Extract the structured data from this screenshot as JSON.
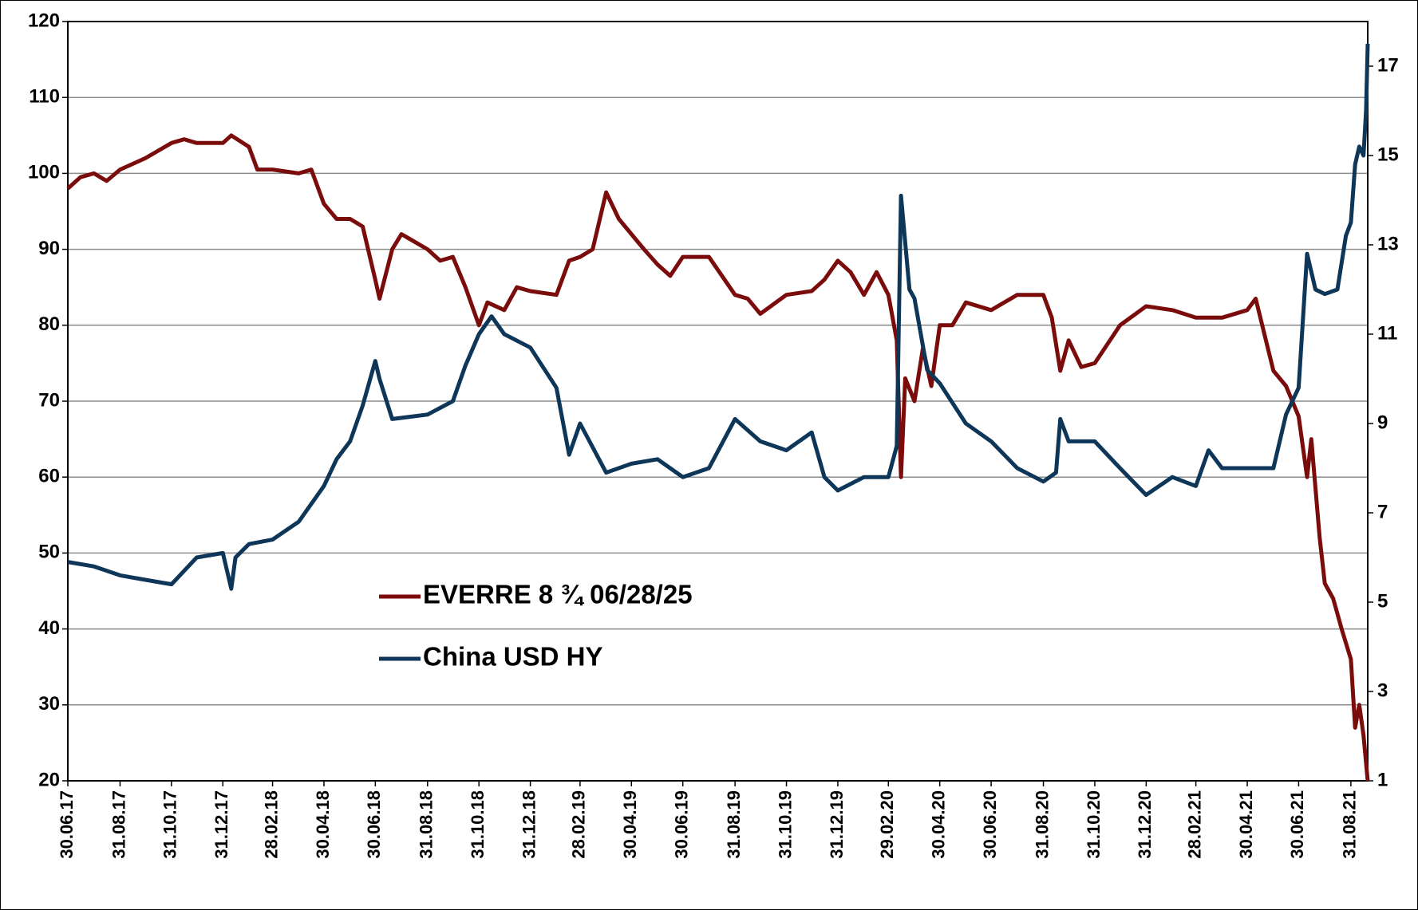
{
  "chart_data": {
    "type": "line",
    "xlim": [
      "30.06.17",
      "20.09.21"
    ],
    "xticks": [
      "30.06.17",
      "31.08.17",
      "31.10.17",
      "31.12.17",
      "28.02.18",
      "30.04.18",
      "30.06.18",
      "31.08.18",
      "31.10.18",
      "31.12.18",
      "28.02.19",
      "30.04.19",
      "30.06.19",
      "31.08.19",
      "31.10.19",
      "31.12.19",
      "29.02.20",
      "30.04.20",
      "30.06.20",
      "31.08.20",
      "31.10.20",
      "31.12.20",
      "28.02.21",
      "30.04.21",
      "30.06.21",
      "31.08.21"
    ],
    "ylim": [
      20,
      120
    ],
    "yticks": [
      20,
      30,
      40,
      50,
      60,
      70,
      80,
      90,
      100,
      110,
      120
    ],
    "y2lim": [
      1,
      18
    ],
    "y2ticks": [
      1,
      3,
      5,
      7,
      9,
      11,
      13,
      15,
      17
    ],
    "grid": true,
    "legend": "lower-left",
    "series": [
      {
        "name": "EVERRE 8 ¾ 06/28/25",
        "color": "#7b0c0c",
        "x": [
          "30.06.17",
          "15.07.17",
          "31.07.17",
          "15.08.17",
          "31.08.17",
          "30.09.17",
          "31.10.17",
          "15.11.17",
          "30.11.17",
          "31.12.17",
          "10.01.18",
          "31.01.18",
          "10.02.18",
          "28.02.18",
          "31.03.18",
          "15.04.18",
          "30.04.18",
          "15.05.18",
          "31.05.18",
          "15.06.18",
          "30.06.18",
          "05.07.18",
          "20.07.18",
          "31.07.18",
          "31.08.18",
          "15.09.18",
          "30.09.18",
          "15.10.18",
          "31.10.18",
          "10.11.18",
          "30.11.18",
          "15.12.18",
          "31.12.18",
          "31.01.19",
          "15.02.19",
          "28.02.19",
          "15.03.19",
          "31.03.19",
          "15.04.19",
          "30.04.19",
          "15.05.19",
          "31.05.19",
          "15.06.19",
          "30.06.19",
          "31.07.19",
          "31.08.19",
          "15.09.19",
          "30.09.19",
          "31.10.19",
          "30.11.19",
          "15.12.19",
          "31.12.19",
          "15.01.20",
          "31.01.20",
          "15.02.20",
          "29.02.20",
          "10.03.20",
          "15.03.20",
          "20.03.20",
          "31.03.20",
          "10.04.20",
          "20.04.20",
          "30.04.20",
          "15.05.20",
          "31.05.20",
          "30.06.20",
          "31.07.20",
          "31.08.20",
          "10.09.20",
          "20.09.20",
          "30.09.20",
          "15.10.20",
          "31.10.20",
          "30.11.20",
          "31.12.20",
          "31.01.21",
          "28.02.21",
          "31.03.21",
          "30.04.21",
          "10.05.21",
          "31.05.21",
          "15.06.21",
          "30.06.21",
          "10.07.21",
          "15.07.21",
          "25.07.21",
          "31.07.21",
          "10.08.21",
          "20.08.21",
          "31.08.21",
          "05.09.21",
          "10.09.21",
          "15.09.21",
          "20.09.21"
        ],
        "values": [
          98,
          99.5,
          100,
          99,
          100.5,
          102,
          104,
          104.5,
          104,
          104,
          105,
          103.5,
          100.5,
          100.5,
          100,
          100.5,
          96,
          94,
          94,
          93,
          86,
          83.5,
          90,
          92,
          90,
          88.5,
          89,
          85,
          80,
          83,
          82,
          85,
          84.5,
          84,
          88.5,
          89,
          90,
          97.5,
          94,
          92,
          90,
          88,
          86.5,
          89,
          89,
          84,
          83.5,
          81.5,
          84,
          84.5,
          86,
          88.5,
          87,
          84,
          87,
          84,
          78,
          60,
          73,
          70,
          77,
          72,
          80,
          80,
          83,
          82,
          84,
          84,
          81,
          74,
          78,
          74.5,
          75,
          80,
          82.5,
          82,
          81,
          81,
          82,
          83.5,
          74,
          72,
          68,
          60,
          65,
          52,
          46,
          44,
          40,
          36,
          27,
          30,
          26,
          20
        ]
      },
      {
        "name": "China USD HY",
        "color": "#0d3658",
        "axis": "y2",
        "x": [
          "30.06.17",
          "31.07.17",
          "31.08.17",
          "30.09.17",
          "31.10.17",
          "15.11.17",
          "30.11.17",
          "31.12.17",
          "10.01.18",
          "15.01.18",
          "31.01.18",
          "28.02.18",
          "31.03.18",
          "30.04.18",
          "15.05.18",
          "31.05.18",
          "15.06.18",
          "30.06.18",
          "05.07.18",
          "20.07.18",
          "31.08.18",
          "30.09.18",
          "15.10.18",
          "31.10.18",
          "15.11.18",
          "30.11.18",
          "31.12.18",
          "31.01.19",
          "15.02.19",
          "28.02.19",
          "31.03.19",
          "30.04.19",
          "31.05.19",
          "30.06.19",
          "31.07.19",
          "31.08.19",
          "30.09.19",
          "31.10.19",
          "30.11.19",
          "15.12.19",
          "31.12.19",
          "31.01.20",
          "29.02.20",
          "10.03.20",
          "15.03.20",
          "25.03.20",
          "31.03.20",
          "15.04.20",
          "30.04.20",
          "31.05.20",
          "30.06.20",
          "31.07.20",
          "31.08.20",
          "15.09.20",
          "20.09.20",
          "30.09.20",
          "31.10.20",
          "30.11.20",
          "31.12.20",
          "31.01.21",
          "28.02.21",
          "15.03.21",
          "31.03.21",
          "30.04.21",
          "31.05.21",
          "15.06.21",
          "30.06.21",
          "10.07.21",
          "20.07.21",
          "31.07.21",
          "15.08.21",
          "25.08.21",
          "31.08.21",
          "05.09.21",
          "10.09.21",
          "15.09.21",
          "18.09.21",
          "20.09.21"
        ],
        "values": [
          5.9,
          5.8,
          5.6,
          5.5,
          5.4,
          5.7,
          6.0,
          6.1,
          5.3,
          6.0,
          6.3,
          6.4,
          6.8,
          7.6,
          8.2,
          8.6,
          9.4,
          10.4,
          10.0,
          9.1,
          9.2,
          9.5,
          10.3,
          11.0,
          11.4,
          11.0,
          10.7,
          9.8,
          8.3,
          9.0,
          7.9,
          8.1,
          8.2,
          7.8,
          8.0,
          9.1,
          8.6,
          8.4,
          8.8,
          7.8,
          7.5,
          7.8,
          7.8,
          8.5,
          14.1,
          12.0,
          11.8,
          10.2,
          9.9,
          9.0,
          8.6,
          8.0,
          7.7,
          7.9,
          9.1,
          8.6,
          8.6,
          8.0,
          7.4,
          7.8,
          7.6,
          8.4,
          8.0,
          8.0,
          8.0,
          9.2,
          9.8,
          12.8,
          12.0,
          11.9,
          12.0,
          13.2,
          13.5,
          14.8,
          15.2,
          15.0,
          16.0,
          17.5
        ]
      }
    ]
  }
}
